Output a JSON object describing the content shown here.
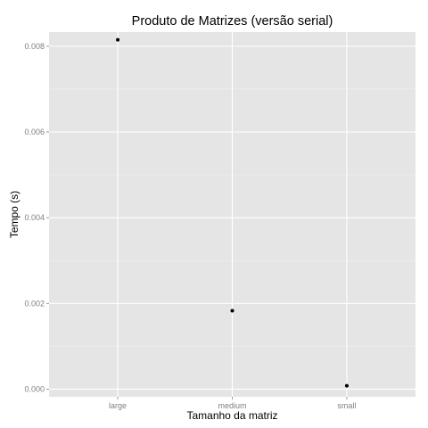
{
  "chart_data": {
    "type": "scatter",
    "title": "Produto de Matrizes (versão serial)",
    "xlabel": "Tamanho da matriz",
    "ylabel": "Tempo (s)",
    "categories": [
      "large",
      "medium",
      "small"
    ],
    "values": [
      0.00815,
      0.00183,
      8e-05
    ],
    "ylim": [
      -0.000178,
      0.00833
    ],
    "y_ticks": [
      0.0,
      0.002,
      0.004,
      0.006,
      0.008
    ],
    "y_tick_labels": [
      "0.000",
      "0.002",
      "0.004",
      "0.006",
      "0.008"
    ],
    "grid": true,
    "legend": "none",
    "colors": {
      "panel_background": "#e5e5e5",
      "grid_major": "#ffffff",
      "grid_minor": "#f2f2f2",
      "point": "#000000",
      "tick_label": "#7f7f7f",
      "tick_mark": "#7f7f7f"
    }
  }
}
